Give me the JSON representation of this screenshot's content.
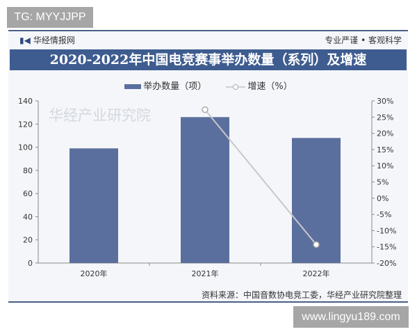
{
  "watermark_top": "TG: MYYJJPP",
  "watermark_bottom": "www.lingyu189.com",
  "brand": "华经情报网",
  "slogan": "专业严谨 • 客观科学",
  "source": "资料来源：中国音数协电竞工委，华经产业研究院整理",
  "logo_watermark": "华经产业研究院",
  "colors": {
    "bar": "#5a6f9e",
    "title_bg": "#3e5c8f",
    "line": "#c8c8c8"
  },
  "chart_data": {
    "type": "bar+line",
    "title": "2020-2022年中国电竞赛事举办数量（系列）及增速",
    "categories": [
      "2020年",
      "2021年",
      "2022年"
    ],
    "series": [
      {
        "name": "举办数量（项）",
        "type": "bar",
        "axis": "left",
        "values": [
          99,
          126,
          108
        ]
      },
      {
        "name": "增速（%）",
        "type": "line",
        "axis": "right",
        "values": [
          null,
          27.3,
          -14.3
        ]
      }
    ],
    "ylim_left": [
      0,
      140
    ],
    "yticks_left": [
      "0",
      "20",
      "40",
      "60",
      "80",
      "100",
      "120",
      "140"
    ],
    "ylim_right": [
      -20,
      30
    ],
    "yticks_right": [
      "-20%",
      "-15%",
      "-10%",
      "-5%",
      "0%",
      "5%",
      "10%",
      "15%",
      "20%",
      "25%",
      "30%"
    ],
    "grid": false,
    "legend": "top"
  }
}
